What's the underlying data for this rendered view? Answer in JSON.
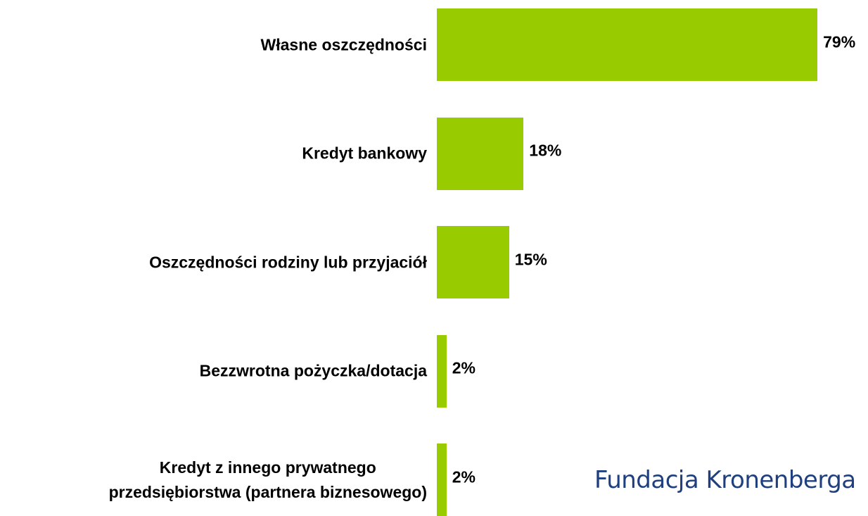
{
  "chart_data": {
    "type": "bar",
    "orientation": "horizontal",
    "categories": [
      "Własne oszczędności",
      "Kredyt bankowy",
      "Oszczędności rodziny lub przyjaciół",
      "Bezzwrotna pożyczka/dotacja",
      "Kredyt z innego prywatnego\nprzedsiębiorstwa (partnera biznesowego)"
    ],
    "values": [
      79,
      18,
      15,
      2,
      2
    ],
    "value_labels": [
      "79%",
      "18%",
      "15%",
      "2%",
      "2%"
    ],
    "color": "#99cc00",
    "watermark": "Fundacja Kronenberga"
  }
}
